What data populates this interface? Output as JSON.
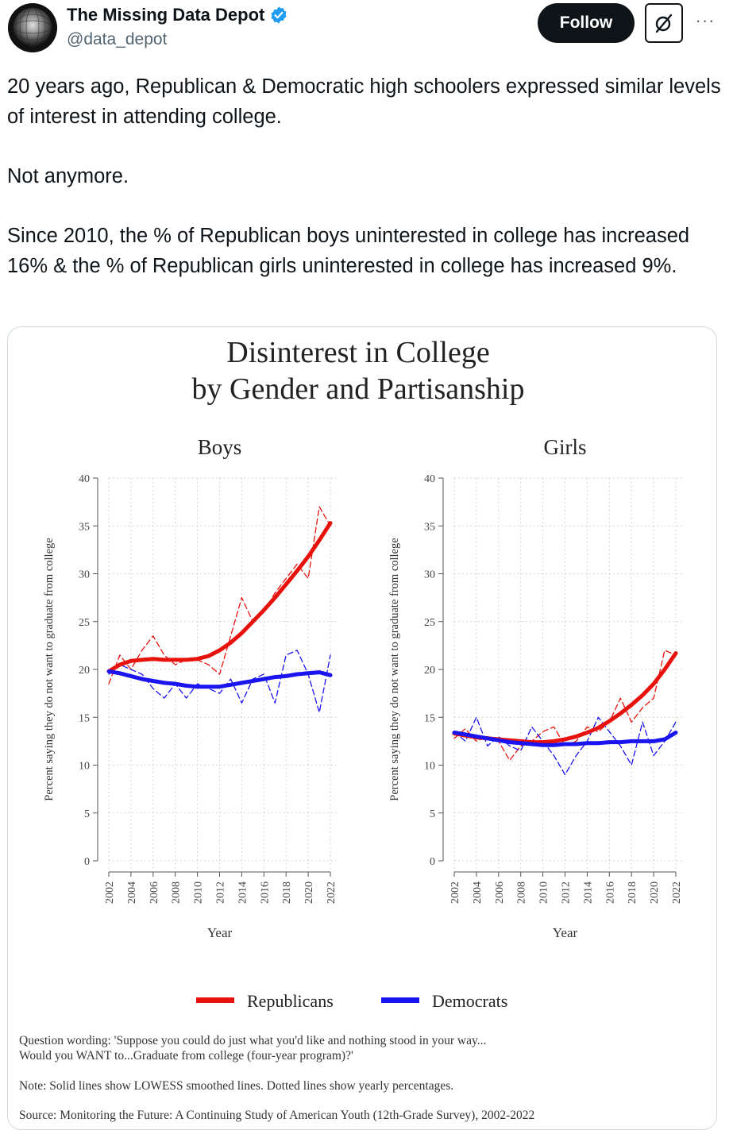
{
  "author": {
    "display_name": "The Missing Data Depot",
    "handle": "@data_depot",
    "verified_icon": "verified-badge-icon",
    "avatar_icon": "avatar-sphere-icon"
  },
  "actions": {
    "follow_label": "Follow",
    "grok_icon": "grok-slash-icon",
    "more_label": "···"
  },
  "tweet": {
    "paragraphs": [
      "20 years ago, Republican & Democratic high schoolers expressed similar levels of interest in attending college.",
      "Not anymore.",
      "Since 2010, the % of Republican boys uninterested in college has increased 16% & the % of Republican girls uninterested in college has increased 9%."
    ]
  },
  "figure": {
    "title_line1": "Disinterest in College",
    "title_line2": "by Gender and Partisanship",
    "legend": {
      "republicans": "Republicans",
      "democrats": "Democrats"
    },
    "notes": {
      "question_line1": "Question wording: 'Suppose you could do just what you'd like and nothing stood in your way...",
      "question_line2": "Would you WANT to...Graduate from college (four-year program)?'",
      "note": "Note: Solid lines show LOWESS smoothed lines. Dotted lines show yearly percentages.",
      "source": "Source: Monitoring the Future: A Continuing Study of American Youth (12th-Grade Survey), 2002-2022"
    },
    "colors": {
      "republicans": "#e8120c",
      "democrats": "#1a14f0"
    }
  },
  "chart_data": [
    {
      "type": "line",
      "title": "Boys",
      "xlabel": "Year",
      "ylabel": "Percent saying they do not want to graduate from college",
      "ylim": [
        0,
        40
      ],
      "yticks": [
        0,
        5,
        10,
        15,
        20,
        25,
        30,
        35,
        40
      ],
      "xticks": [
        2002,
        2004,
        2006,
        2008,
        2010,
        2012,
        2014,
        2016,
        2018,
        2020,
        2022
      ],
      "grid": true,
      "x": [
        2002,
        2003,
        2004,
        2005,
        2006,
        2007,
        2008,
        2009,
        2010,
        2011,
        2012,
        2013,
        2014,
        2015,
        2016,
        2017,
        2018,
        2019,
        2020,
        2021,
        2022
      ],
      "series": [
        {
          "name": "Republicans",
          "style": "dashed",
          "values": [
            18.5,
            21.5,
            20.0,
            22.0,
            23.5,
            21.5,
            20.5,
            21.0,
            21.0,
            20.5,
            19.5,
            23.5,
            27.5,
            25.0,
            26.0,
            28.0,
            29.5,
            31.0,
            29.5,
            37.0,
            35.0
          ]
        },
        {
          "name": "Democrats",
          "style": "dashed",
          "values": [
            19.5,
            20.5,
            20.0,
            19.5,
            18.0,
            17.0,
            18.5,
            17.0,
            18.5,
            18.0,
            17.5,
            19.0,
            16.5,
            19.0,
            19.5,
            16.5,
            21.5,
            22.0,
            19.5,
            15.5,
            21.5
          ]
        },
        {
          "name": "Republicans",
          "style": "smoothed",
          "values": [
            19.8,
            20.5,
            20.9,
            21.0,
            21.1,
            21.0,
            21.0,
            21.0,
            21.1,
            21.4,
            22.0,
            22.8,
            23.8,
            25.0,
            26.2,
            27.5,
            28.9,
            30.3,
            31.8,
            33.5,
            35.3
          ]
        },
        {
          "name": "Democrats",
          "style": "smoothed",
          "values": [
            19.8,
            19.6,
            19.3,
            19.0,
            18.8,
            18.6,
            18.5,
            18.3,
            18.2,
            18.2,
            18.2,
            18.4,
            18.6,
            18.8,
            19.0,
            19.2,
            19.3,
            19.5,
            19.6,
            19.7,
            19.4
          ]
        }
      ]
    },
    {
      "type": "line",
      "title": "Girls",
      "xlabel": "Year",
      "ylabel": "Percent saying they do not want to graduate from college",
      "ylim": [
        0,
        40
      ],
      "yticks": [
        0,
        5,
        10,
        15,
        20,
        25,
        30,
        35,
        40
      ],
      "xticks": [
        2002,
        2004,
        2006,
        2008,
        2010,
        2012,
        2014,
        2016,
        2018,
        2020,
        2022
      ],
      "grid": true,
      "x": [
        2002,
        2003,
        2004,
        2005,
        2006,
        2007,
        2008,
        2009,
        2010,
        2011,
        2012,
        2013,
        2014,
        2015,
        2016,
        2017,
        2018,
        2019,
        2020,
        2021,
        2022
      ],
      "series": [
        {
          "name": "Republicans",
          "style": "dashed",
          "values": [
            12.8,
            13.8,
            12.5,
            13.0,
            12.5,
            10.5,
            12.0,
            12.5,
            13.5,
            14.0,
            12.0,
            12.5,
            14.0,
            13.5,
            14.5,
            17.0,
            14.5,
            16.0,
            17.0,
            22.0,
            21.5
          ]
        },
        {
          "name": "Democrats",
          "style": "dashed",
          "values": [
            13.5,
            12.5,
            15.0,
            12.0,
            13.0,
            12.0,
            11.5,
            14.0,
            12.5,
            11.0,
            9.0,
            11.0,
            12.5,
            15.0,
            13.5,
            12.0,
            10.0,
            14.5,
            11.0,
            12.5,
            14.5
          ]
        },
        {
          "name": "Republicans",
          "style": "smoothed",
          "values": [
            13.3,
            13.1,
            12.9,
            12.8,
            12.7,
            12.6,
            12.5,
            12.4,
            12.4,
            12.5,
            12.7,
            13.0,
            13.4,
            13.9,
            14.6,
            15.4,
            16.3,
            17.3,
            18.5,
            20.0,
            21.7
          ]
        },
        {
          "name": "Democrats",
          "style": "smoothed",
          "values": [
            13.4,
            13.2,
            13.0,
            12.8,
            12.6,
            12.4,
            12.3,
            12.2,
            12.1,
            12.1,
            12.2,
            12.2,
            12.3,
            12.3,
            12.4,
            12.4,
            12.5,
            12.5,
            12.5,
            12.7,
            13.4
          ]
        }
      ]
    }
  ]
}
